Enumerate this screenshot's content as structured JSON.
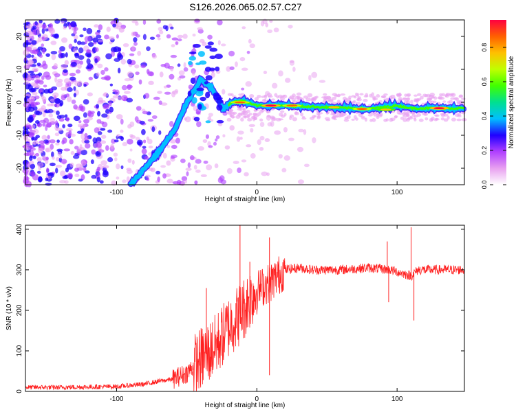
{
  "figure_title": "S126.2026.065.02.57.C27",
  "chart_data": [
    {
      "type": "heatmap",
      "title": "S126.2026.065.02.57.C27",
      "xlabel": "Height of straight line (km)",
      "ylabel": "Frequency (Hz)",
      "xlim": [
        -165,
        148
      ],
      "ylim": [
        -25,
        25
      ],
      "xticks": [
        -100,
        0,
        100
      ],
      "yticks": [
        -20,
        -10,
        0,
        10,
        20
      ],
      "xtick_labels": [
        "-100",
        "0",
        "100"
      ],
      "ytick_labels": [
        "-20",
        "-10",
        "0",
        "10",
        "20"
      ],
      "colorbar": {
        "label": "Normalized spectral amplitude",
        "range": [
          0,
          0.96
        ],
        "ticks": [
          0,
          0.2,
          0.4,
          0.6,
          0.8
        ],
        "tick_labels": [
          "0.0",
          "0.2",
          "0.4",
          "0.6",
          "0.8"
        ],
        "colors": [
          "#ffffff",
          "#e8a0f0",
          "#b040ff",
          "#2000ff",
          "#00c0ff",
          "#00e090",
          "#40ff00",
          "#c0ff00",
          "#ffc000",
          "#ff6000",
          "#ff0040"
        ]
      },
      "ridge_track": [
        {
          "x": -90,
          "y": -25
        },
        {
          "x": -80,
          "y": -20
        },
        {
          "x": -70,
          "y": -15
        },
        {
          "x": -58,
          "y": -8
        },
        {
          "x": -50,
          "y": 0
        },
        {
          "x": -40,
          "y": 7
        },
        {
          "x": -32,
          "y": 4
        },
        {
          "x": -24,
          "y": -2
        },
        {
          "x": -18,
          "y": 0
        },
        {
          "x": -10,
          "y": 0.5
        },
        {
          "x": 0,
          "y": -1
        },
        {
          "x": 20,
          "y": -1
        },
        {
          "x": 50,
          "y": -1.5
        },
        {
          "x": 80,
          "y": -2
        },
        {
          "x": 100,
          "y": -1
        },
        {
          "x": 110,
          "y": -1.8
        },
        {
          "x": 148,
          "y": -1.8
        }
      ],
      "ridge_peaks": [
        {
          "x": -12,
          "y": 0,
          "amplitude": 0.9
        },
        {
          "x": 10,
          "y": -1,
          "amplitude": 0.95
        },
        {
          "x": 25,
          "y": -1,
          "amplitude": 0.85
        },
        {
          "x": 55,
          "y": -1.5,
          "amplitude": 0.8
        },
        {
          "x": 75,
          "y": -2,
          "amplitude": 0.85
        },
        {
          "x": 92,
          "y": -2.2,
          "amplitude": 0.8
        },
        {
          "x": 130,
          "y": -1.8,
          "amplitude": 0.95
        }
      ]
    },
    {
      "type": "line",
      "series": [
        {
          "name": "SNR",
          "color": "#ff2020"
        }
      ],
      "xlabel": "Height of straight line (km)",
      "ylabel": "SNR (10 * v/v)",
      "xlim": [
        -165,
        148
      ],
      "ylim": [
        0,
        410
      ],
      "xticks": [
        -100,
        0,
        100
      ],
      "yticks": [
        0,
        100,
        200,
        300,
        400
      ],
      "xtick_labels": [
        "-100",
        "0",
        "100"
      ],
      "ytick_labels": [
        "0",
        "100",
        "200",
        "300",
        "400"
      ],
      "x": [
        -165,
        -140,
        -120,
        -100,
        -80,
        -70,
        -60,
        -50,
        -40,
        -30,
        -20,
        -10,
        -5,
        0,
        10,
        20,
        30,
        40,
        60,
        80,
        95,
        100,
        105,
        110,
        115,
        130,
        148
      ],
      "values": [
        10,
        10,
        11,
        12,
        18,
        25,
        30,
        45,
        80,
        110,
        160,
        200,
        230,
        250,
        270,
        300,
        305,
        300,
        300,
        305,
        300,
        295,
        290,
        285,
        300,
        300,
        300
      ],
      "spikes": [
        {
          "x": -12,
          "y": 410
        },
        {
          "x": 9,
          "y": 380
        },
        {
          "x": -36,
          "y": 255
        },
        {
          "x": -5,
          "y": 320
        },
        {
          "x": 93,
          "y": 370
        },
        {
          "x": 110,
          "y": 405
        },
        {
          "x": 112,
          "y": 175
        },
        {
          "x": 94,
          "y": 220
        },
        {
          "x": 9,
          "y": 40
        }
      ]
    }
  ]
}
